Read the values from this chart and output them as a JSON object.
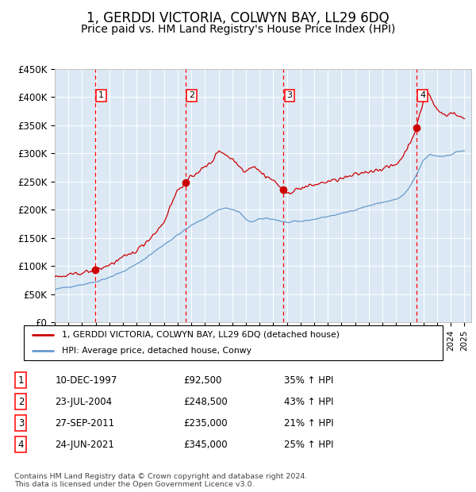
{
  "title": "1, GERDDI VICTORIA, COLWYN BAY, LL29 6DQ",
  "subtitle": "Price paid vs. HM Land Registry's House Price Index (HPI)",
  "title_fontsize": 12,
  "subtitle_fontsize": 10,
  "background_color": "#ffffff",
  "plot_bg_color": "#dce9f5",
  "grid_color": "#ffffff",
  "ylabel_ticks": [
    "£0",
    "£50K",
    "£100K",
    "£150K",
    "£200K",
    "£250K",
    "£300K",
    "£350K",
    "£400K",
    "£450K"
  ],
  "ylabel_values": [
    0,
    50000,
    100000,
    150000,
    200000,
    250000,
    300000,
    350000,
    400000,
    450000
  ],
  "xmin": 1995.0,
  "xmax": 2025.5,
  "ymin": 0,
  "ymax": 450000,
  "sale_dates": [
    1997.94,
    2004.56,
    2011.74,
    2021.48
  ],
  "sale_prices": [
    92500,
    248500,
    235000,
    345000
  ],
  "sale_labels": [
    "1",
    "2",
    "3",
    "4"
  ],
  "vline_color": "#ff0000",
  "dot_color": "#cc0000",
  "red_line_color": "#cc0000",
  "blue_line_color": "#6699cc",
  "legend_entries": [
    "1, GERDDI VICTORIA, COLWYN BAY, LL29 6DQ (detached house)",
    "HPI: Average price, detached house, Conwy"
  ],
  "footer_text": "Contains HM Land Registry data © Crown copyright and database right 2024.\nThis data is licensed under the Open Government Licence v3.0.",
  "table_data": [
    [
      "1",
      "10-DEC-1997",
      "£92,500",
      "35% ↑ HPI"
    ],
    [
      "2",
      "23-JUL-2004",
      "£248,500",
      "43% ↑ HPI"
    ],
    [
      "3",
      "27-SEP-2011",
      "£235,000",
      "21% ↑ HPI"
    ],
    [
      "4",
      "24-JUN-2021",
      "£345,000",
      "25% ↑ HPI"
    ]
  ]
}
